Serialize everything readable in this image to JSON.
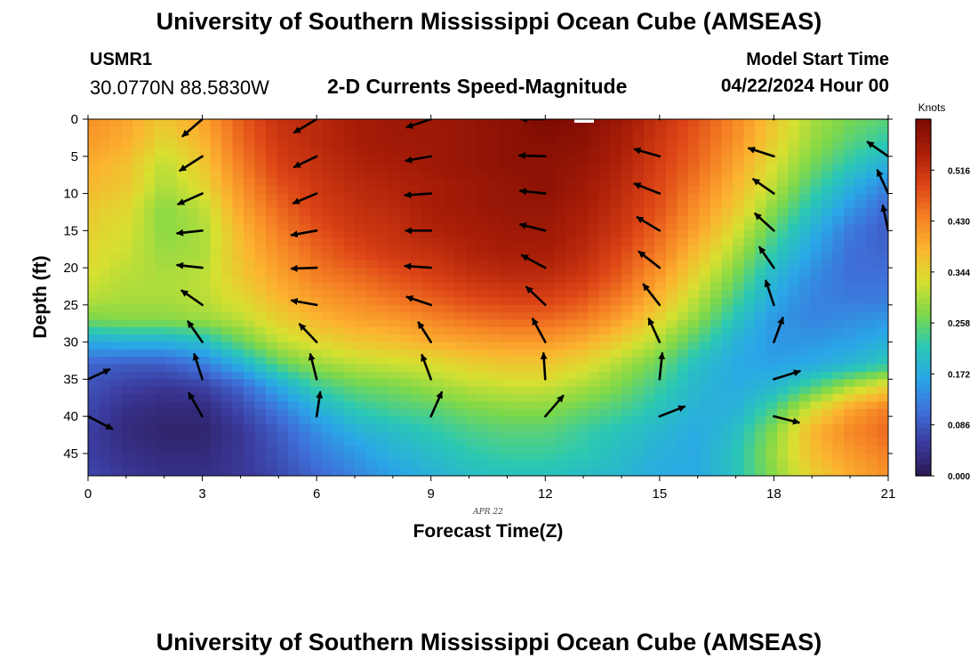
{
  "header": {
    "main_title": "University of Southern Mississippi Ocean Cube (AMSEAS)",
    "station_id": "USMR1",
    "station_coords": "30.0770N  88.5830W",
    "chart_title": "2-D Currents Speed-Magnitude",
    "model_start_label": "Model Start Time",
    "model_start_value": "04/22/2024 Hour 00"
  },
  "footer": {
    "title": "University of Southern Mississippi Ocean Cube (AMSEAS)"
  },
  "chart_data": {
    "type": "heatmap",
    "title": "2-D Currents Speed-Magnitude",
    "xlabel": "Forecast Time(Z)",
    "ylabel": "Depth (ft)",
    "date_label": "APR 22",
    "xlim": [
      0,
      21
    ],
    "ylim": [
      0,
      48
    ],
    "y_inverted": true,
    "x_ticks": [
      0,
      3,
      6,
      9,
      12,
      15,
      18,
      21
    ],
    "y_ticks": [
      0,
      5,
      10,
      15,
      20,
      25,
      30,
      35,
      40,
      45
    ],
    "colorbar": {
      "label": "Knots",
      "min": 0.0,
      "max": 0.602,
      "ticks": [
        "0.000",
        "0.086",
        "0.172",
        "0.258",
        "0.344",
        "0.430",
        "0.516"
      ],
      "colors": [
        "#2a1850",
        "#3b3a9c",
        "#3f6fd8",
        "#2aa6e8",
        "#2ac8b4",
        "#7ed84a",
        "#d8e030",
        "#fbb430",
        "#f58024",
        "#dc4416",
        "#aa1e08",
        "#7a0a02"
      ]
    },
    "x": [
      0,
      1,
      2,
      3,
      4,
      5,
      6,
      7,
      8,
      9,
      10,
      11,
      12,
      13,
      14,
      15,
      16,
      17,
      18,
      19,
      20,
      21
    ],
    "depths": [
      0,
      3,
      6,
      9,
      12,
      15,
      18,
      21,
      24,
      27,
      30,
      33,
      36,
      39,
      42,
      45,
      48
    ],
    "speed": [
      [
        0.42,
        0.4,
        0.36,
        0.4,
        0.47,
        0.52,
        0.53,
        0.55,
        0.56,
        0.56,
        0.57,
        0.58,
        0.6,
        0.59,
        0.56,
        0.52,
        0.48,
        0.43,
        0.36,
        0.3,
        0.27,
        0.25
      ],
      [
        0.41,
        0.39,
        0.34,
        0.38,
        0.46,
        0.51,
        0.53,
        0.55,
        0.56,
        0.56,
        0.57,
        0.58,
        0.59,
        0.58,
        0.55,
        0.51,
        0.47,
        0.42,
        0.35,
        0.29,
        0.25,
        0.22
      ],
      [
        0.39,
        0.37,
        0.31,
        0.36,
        0.44,
        0.5,
        0.52,
        0.54,
        0.55,
        0.56,
        0.57,
        0.58,
        0.58,
        0.57,
        0.54,
        0.5,
        0.46,
        0.4,
        0.33,
        0.27,
        0.22,
        0.18
      ],
      [
        0.38,
        0.36,
        0.3,
        0.34,
        0.42,
        0.48,
        0.51,
        0.53,
        0.54,
        0.55,
        0.56,
        0.57,
        0.58,
        0.56,
        0.53,
        0.49,
        0.44,
        0.38,
        0.31,
        0.24,
        0.18,
        0.13
      ],
      [
        0.36,
        0.34,
        0.28,
        0.31,
        0.4,
        0.46,
        0.5,
        0.52,
        0.53,
        0.55,
        0.56,
        0.57,
        0.57,
        0.55,
        0.52,
        0.48,
        0.42,
        0.36,
        0.28,
        0.21,
        0.15,
        0.1
      ],
      [
        0.35,
        0.33,
        0.28,
        0.3,
        0.38,
        0.44,
        0.48,
        0.51,
        0.52,
        0.54,
        0.55,
        0.56,
        0.56,
        0.54,
        0.51,
        0.46,
        0.4,
        0.33,
        0.25,
        0.18,
        0.12,
        0.09
      ],
      [
        0.34,
        0.32,
        0.29,
        0.3,
        0.37,
        0.42,
        0.46,
        0.49,
        0.51,
        0.52,
        0.54,
        0.55,
        0.55,
        0.53,
        0.49,
        0.44,
        0.37,
        0.3,
        0.22,
        0.16,
        0.11,
        0.1
      ],
      [
        0.33,
        0.31,
        0.3,
        0.31,
        0.36,
        0.4,
        0.44,
        0.46,
        0.48,
        0.5,
        0.52,
        0.53,
        0.53,
        0.51,
        0.47,
        0.41,
        0.34,
        0.27,
        0.19,
        0.14,
        0.11,
        0.11
      ],
      [
        0.31,
        0.3,
        0.3,
        0.31,
        0.34,
        0.38,
        0.41,
        0.43,
        0.45,
        0.47,
        0.49,
        0.5,
        0.5,
        0.48,
        0.44,
        0.38,
        0.31,
        0.24,
        0.17,
        0.13,
        0.12,
        0.12
      ],
      [
        0.27,
        0.28,
        0.28,
        0.29,
        0.31,
        0.35,
        0.38,
        0.4,
        0.41,
        0.43,
        0.45,
        0.46,
        0.46,
        0.44,
        0.4,
        0.34,
        0.28,
        0.21,
        0.15,
        0.13,
        0.14,
        0.15
      ],
      [
        0.17,
        0.18,
        0.18,
        0.2,
        0.26,
        0.31,
        0.34,
        0.36,
        0.37,
        0.39,
        0.4,
        0.41,
        0.41,
        0.39,
        0.35,
        0.3,
        0.24,
        0.18,
        0.15,
        0.15,
        0.16,
        0.18
      ],
      [
        0.1,
        0.09,
        0.09,
        0.12,
        0.18,
        0.25,
        0.29,
        0.31,
        0.32,
        0.33,
        0.35,
        0.36,
        0.36,
        0.34,
        0.3,
        0.26,
        0.2,
        0.17,
        0.16,
        0.17,
        0.19,
        0.22
      ],
      [
        0.08,
        0.06,
        0.05,
        0.06,
        0.1,
        0.17,
        0.23,
        0.26,
        0.27,
        0.29,
        0.31,
        0.32,
        0.32,
        0.3,
        0.27,
        0.23,
        0.19,
        0.17,
        0.19,
        0.24,
        0.3,
        0.35
      ],
      [
        0.07,
        0.04,
        0.03,
        0.03,
        0.07,
        0.12,
        0.18,
        0.22,
        0.24,
        0.25,
        0.27,
        0.28,
        0.28,
        0.26,
        0.24,
        0.21,
        0.18,
        0.18,
        0.24,
        0.33,
        0.4,
        0.44
      ],
      [
        0.06,
        0.03,
        0.02,
        0.02,
        0.05,
        0.09,
        0.14,
        0.18,
        0.2,
        0.22,
        0.24,
        0.25,
        0.25,
        0.23,
        0.21,
        0.19,
        0.17,
        0.2,
        0.28,
        0.38,
        0.43,
        0.46
      ],
      [
        0.06,
        0.04,
        0.03,
        0.03,
        0.05,
        0.08,
        0.12,
        0.15,
        0.18,
        0.2,
        0.22,
        0.23,
        0.23,
        0.22,
        0.2,
        0.18,
        0.17,
        0.21,
        0.29,
        0.37,
        0.41,
        0.44
      ],
      [
        0.07,
        0.05,
        0.04,
        0.04,
        0.05,
        0.07,
        0.1,
        0.13,
        0.16,
        0.18,
        0.2,
        0.21,
        0.21,
        0.2,
        0.19,
        0.17,
        0.17,
        0.21,
        0.28,
        0.35,
        0.39,
        0.42
      ]
    ],
    "vector_times": [
      0,
      3,
      6,
      9,
      12,
      15,
      18,
      21
    ],
    "vector_depths": [
      0,
      5,
      10,
      15,
      20,
      25,
      30,
      35,
      40
    ],
    "vectors_dx_dy": [
      [
        null,
        null,
        null,
        null,
        null,
        null,
        null,
        [
          24,
          -11
        ],
        [
          27,
          14
        ]
      ],
      [
        [
          -22,
          19
        ],
        [
          -25,
          16
        ],
        [
          -27,
          12
        ],
        [
          -28,
          3
        ],
        [
          -28,
          -3
        ],
        [
          -23,
          -16
        ],
        [
          -16,
          -23
        ],
        [
          -9,
          -28
        ],
        [
          -15,
          -26
        ]
      ],
      [
        [
          -25,
          15
        ],
        [
          -25,
          12
        ],
        [
          -26,
          11
        ],
        [
          -28,
          5
        ],
        [
          -28,
          1
        ],
        [
          -28,
          -5
        ],
        [
          -19,
          -20
        ],
        [
          -7,
          -28
        ],
        [
          4,
          -27
        ]
      ],
      [
        [
          -27,
          9
        ],
        [
          -28,
          5
        ],
        [
          -29,
          2
        ],
        [
          -28,
          0
        ],
        [
          -29,
          -2
        ],
        [
          -27,
          -9
        ],
        [
          -14,
          -22
        ],
        [
          -10,
          -27
        ],
        [
          12,
          -27
        ]
      ],
      [
        [
          -27,
          0
        ],
        [
          -29,
          -1
        ],
        [
          -28,
          -3
        ],
        [
          -28,
          -7
        ],
        [
          -26,
          -14
        ],
        [
          -21,
          -20
        ],
        [
          -14,
          -26
        ],
        [
          -2,
          -29
        ],
        [
          20,
          -23
        ]
      ],
      [
        [
          -28,
          -8
        ],
        [
          -28,
          -8
        ],
        [
          -28,
          -11
        ],
        [
          -25,
          -15
        ],
        [
          -23,
          -18
        ],
        [
          -18,
          -23
        ],
        [
          -12,
          -26
        ],
        [
          3,
          -29
        ],
        [
          28,
          -11
        ]
      ],
      [
        [
          -28,
          -10
        ],
        [
          -28,
          -9
        ],
        [
          -23,
          -16
        ],
        [
          -21,
          -19
        ],
        [
          -16,
          -23
        ],
        [
          -9,
          -27
        ],
        [
          10,
          -27
        ],
        [
          29,
          -9
        ],
        [
          28,
          7
        ]
      ],
      [
        [
          -27,
          -12
        ],
        [
          -23,
          -16
        ],
        [
          -12,
          -26
        ],
        [
          -6,
          -28
        ],
        null,
        null,
        null,
        null,
        null
      ]
    ]
  }
}
